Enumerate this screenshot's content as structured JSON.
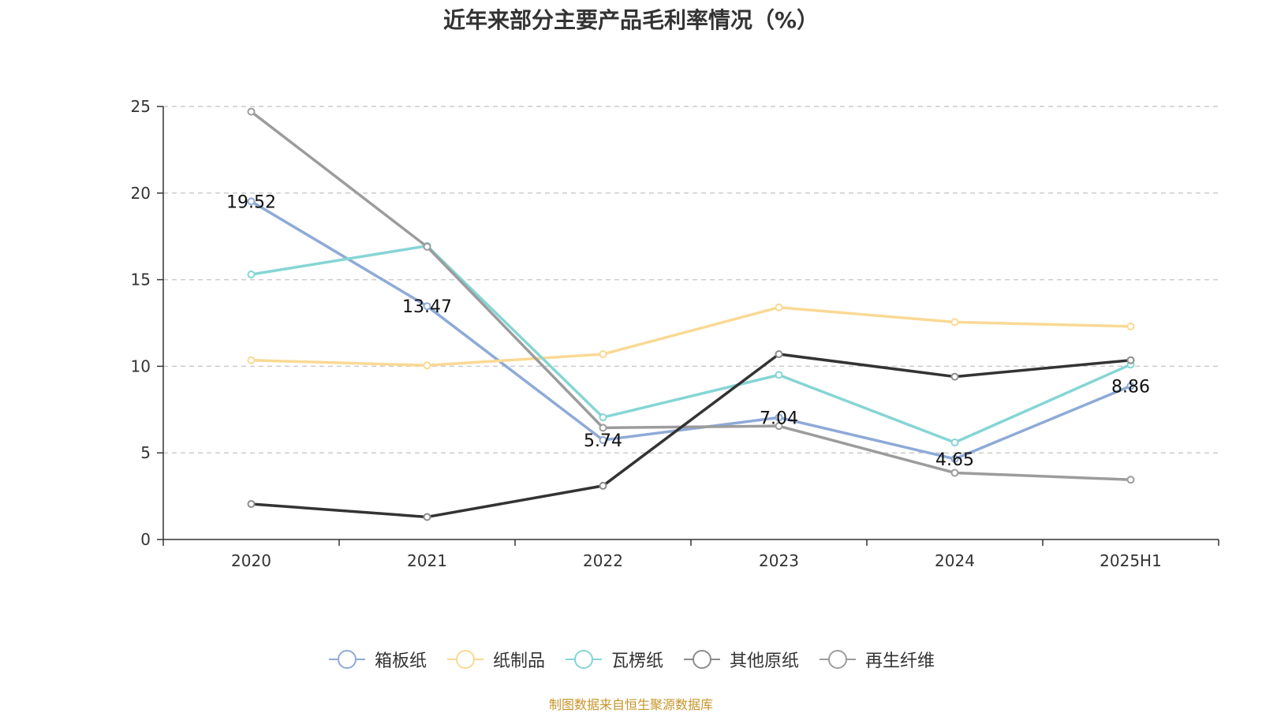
{
  "chart_data": {
    "type": "line",
    "title": "近年来部分主要产品毛利率情况（%）",
    "categories": [
      "2020",
      "2021",
      "2022",
      "2023",
      "2024",
      "2025H1"
    ],
    "ylim": [
      0,
      25
    ],
    "yticks": [
      0,
      5,
      10,
      15,
      20,
      25
    ],
    "grid": true,
    "legend_position": "bottom",
    "series": [
      {
        "name": "箱板纸",
        "color": "#8eaad7",
        "values": [
          19.52,
          13.47,
          5.74,
          7.04,
          4.65,
          8.86
        ],
        "labels": [
          "19.52",
          "13.47",
          "5.74",
          "7.04",
          "4.65",
          "8.86"
        ]
      },
      {
        "name": "纸制品",
        "color": "#fad995",
        "values": [
          10.35,
          10.05,
          10.7,
          13.4,
          12.55,
          12.3
        ]
      },
      {
        "name": "瓦楞纸",
        "color": "#86d5d5",
        "values": [
          15.3,
          16.95,
          7.05,
          9.5,
          5.6,
          10.1
        ]
      },
      {
        "name": "其他原纸",
        "color": "#333333",
        "values": [
          2.05,
          1.3,
          3.1,
          10.7,
          9.4,
          10.35
        ]
      },
      {
        "name": "再生纤维",
        "color": "#9c9c9c",
        "values": [
          24.7,
          16.9,
          6.45,
          6.55,
          3.85,
          3.45
        ]
      }
    ],
    "legend_marker_colors": [
      "#8eaad7",
      "#fad995",
      "#86d5d5",
      "#8c8c8c",
      "#9c9c9c"
    ]
  },
  "source": "制图数据来自恒生聚源数据库"
}
